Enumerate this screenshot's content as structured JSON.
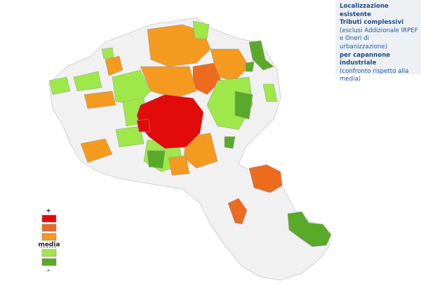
{
  "info": {
    "title": "Localizzazione esistente",
    "subtitle": "Tributi complessivi",
    "note": "(esclusi Addizionale IRPEF e Oneri di urbanizzazione)",
    "scope": "per capannone industriale",
    "comparison": "(confronto rispetto alla media)"
  },
  "legend": {
    "top_label": "+",
    "middle_label": "media",
    "bottom_label": "-",
    "colors": [
      "#e20b0b",
      "#ed6b1f",
      "#f39a1f",
      "#9ee84a",
      "#5aaa2a"
    ]
  }
}
